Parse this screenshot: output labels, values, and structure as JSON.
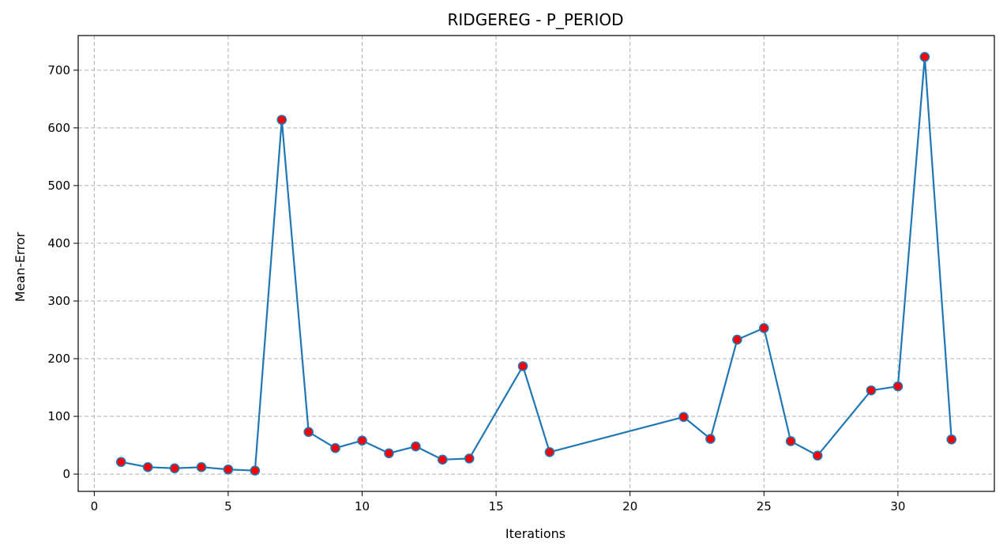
{
  "chart_data": {
    "type": "line",
    "title": "RIDGEREG - P_PERIOD",
    "xlabel": "Iterations",
    "ylabel": "Mean-Error",
    "xlim": [
      -0.6,
      33.6
    ],
    "ylim": [
      -30,
      760
    ],
    "xticks": [
      0,
      5,
      10,
      15,
      20,
      25,
      30
    ],
    "yticks": [
      0,
      100,
      200,
      300,
      400,
      500,
      600,
      700
    ],
    "grid": true,
    "line_color": "#1f77b4",
    "marker_face_color": "#ff0000",
    "marker_edge_color": "#1f77b4",
    "series": [
      {
        "x": [
          1,
          2,
          3,
          4,
          5,
          6,
          7,
          8,
          9,
          10,
          11,
          12,
          13,
          14,
          16,
          17,
          22,
          23,
          24,
          25,
          26,
          27,
          29,
          30,
          31,
          32
        ],
        "y": [
          21,
          12,
          10,
          12,
          8,
          6,
          614,
          73,
          45,
          58,
          36,
          48,
          25,
          27,
          187,
          38,
          99,
          61,
          233,
          253,
          57,
          32,
          145,
          152,
          723,
          60
        ]
      }
    ]
  }
}
